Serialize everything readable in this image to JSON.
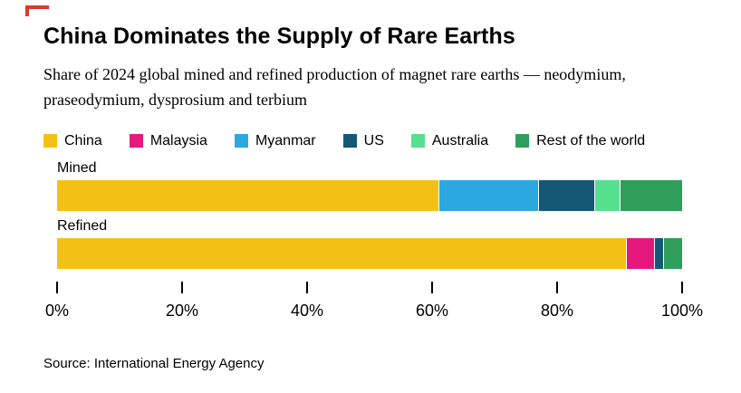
{
  "brand": {
    "color": "#d93a2b"
  },
  "header": {
    "title": "China Dominates the Supply of Rare Earths",
    "subtitle": "Share of 2024 global mined and refined production of magnet rare earths — neodymium, praseodymium, dysprosium and terbium"
  },
  "source": "Source: International Energy Agency",
  "chart_data": {
    "type": "bar",
    "orientation": "horizontal",
    "stacked": true,
    "unit": "%",
    "xlim": [
      0,
      100
    ],
    "x_ticks": [
      "0%",
      "20%",
      "40%",
      "60%",
      "80%",
      "100%"
    ],
    "grid": false,
    "legend_position": "top",
    "legend": [
      "China",
      "Malaysia",
      "Myanmar",
      "US",
      "Australia",
      "Rest of the world"
    ],
    "colors": {
      "China": "#f3c116",
      "Malaysia": "#e5197c",
      "Myanmar": "#2ba8e0",
      "US": "#155876",
      "Australia": "#56df8f",
      "Rest of the world": "#2f9e5b"
    },
    "bars": [
      {
        "label": "Mined",
        "segments": [
          {
            "name": "China",
            "value": 61
          },
          {
            "name": "Myanmar",
            "value": 16
          },
          {
            "name": "US",
            "value": 9
          },
          {
            "name": "Australia",
            "value": 4
          },
          {
            "name": "Rest of the world",
            "value": 10
          }
        ]
      },
      {
        "label": "Refined",
        "segments": [
          {
            "name": "China",
            "value": 91
          },
          {
            "name": "Malaysia",
            "value": 4.5
          },
          {
            "name": "US",
            "value": 1.5
          },
          {
            "name": "Rest of the world",
            "value": 3
          }
        ]
      }
    ]
  }
}
